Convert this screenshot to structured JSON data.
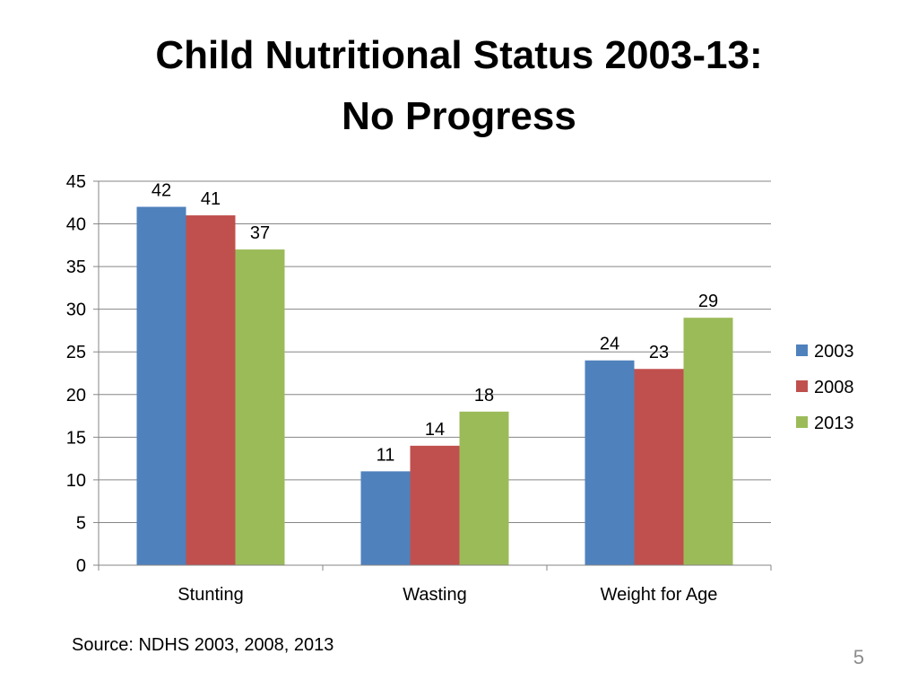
{
  "slide": {
    "title_line1": "Child Nutritional Status 2003-13:",
    "title_line2": "No Progress",
    "source": "Source: NDHS 2003, 2008, 2013",
    "page_number": "5"
  },
  "chart_data": {
    "type": "bar",
    "categories": [
      "Stunting",
      "Wasting",
      "Weight for Age"
    ],
    "series": [
      {
        "name": "2003",
        "values": [
          42,
          11,
          24
        ],
        "color": "#4f81bd"
      },
      {
        "name": "2008",
        "values": [
          41,
          14,
          23
        ],
        "color": "#c0504d"
      },
      {
        "name": "2013",
        "values": [
          37,
          18,
          29
        ],
        "color": "#9bbb59"
      }
    ],
    "ylim": [
      0,
      45
    ],
    "yticks": [
      0,
      5,
      10,
      15,
      20,
      25,
      30,
      35,
      40,
      45
    ],
    "grid": true,
    "legend": "right",
    "data_labels": true
  }
}
